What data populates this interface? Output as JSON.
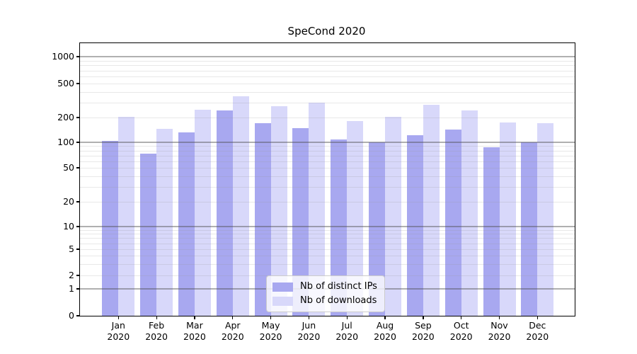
{
  "chart_data": {
    "type": "bar",
    "title": "SpeCond 2020",
    "categories": [
      "Jan",
      "Feb",
      "Mar",
      "Apr",
      "May",
      "Jun",
      "Jul",
      "Aug",
      "Sep",
      "Oct",
      "Nov",
      "Dec"
    ],
    "year_label": "2020",
    "series": [
      {
        "name": "Nb of distinct IPs",
        "color": "#a8a8f0",
        "values": [
          105,
          73,
          131,
          240,
          172,
          150,
          108,
          101,
          123,
          143,
          88,
          100
        ]
      },
      {
        "name": "Nb of downloads",
        "color": "#d8d8fa",
        "values": [
          205,
          145,
          246,
          355,
          270,
          297,
          181,
          205,
          283,
          242,
          173,
          170
        ]
      }
    ],
    "yticks": [
      0,
      1,
      2,
      5,
      10,
      20,
      50,
      100,
      200,
      500,
      1000
    ],
    "yscale": "log-like (symlog, linear below 1)",
    "ylim": [
      0,
      1500
    ],
    "grid": true,
    "legend_position": "bottom-center"
  }
}
